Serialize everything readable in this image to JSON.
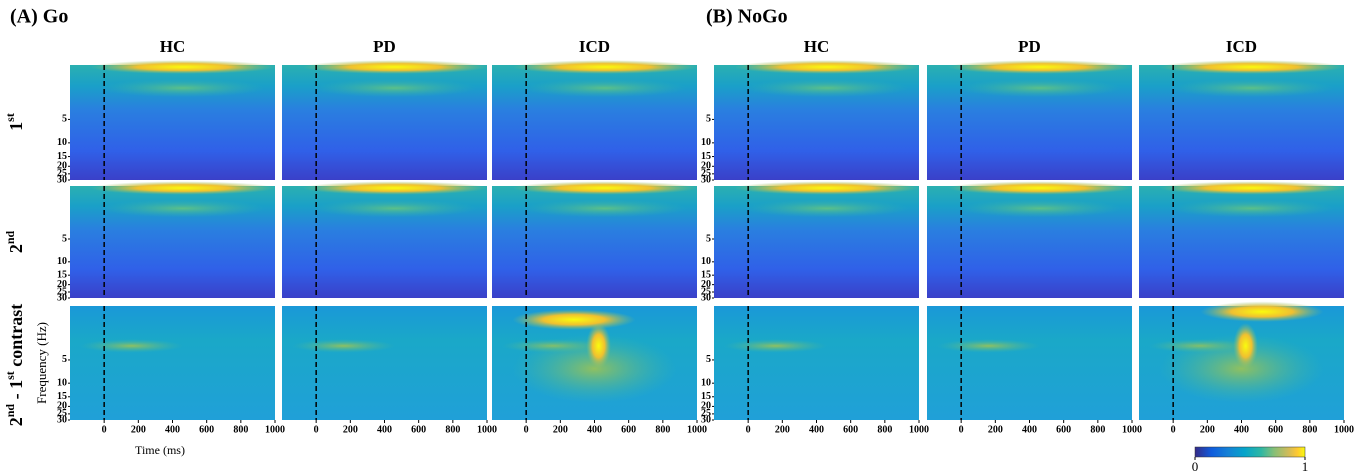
{
  "panels": [
    {
      "label": "(A) Go",
      "groups": [
        "HC",
        "PD",
        "ICD"
      ]
    },
    {
      "label": "(B) NoGo",
      "groups": [
        "HC",
        "PD",
        "ICD"
      ]
    }
  ],
  "rows": [
    [
      {
        "text": "1"
      },
      {
        "text": "st",
        "sup": true
      }
    ],
    [
      {
        "text": "2"
      },
      {
        "text": "nd",
        "sup": true
      }
    ],
    [
      {
        "text": "2"
      },
      {
        "text": "nd",
        "sup": true
      },
      {
        "text": " - 1"
      },
      {
        "text": "st",
        "sup": true
      },
      {
        "text": " contrast"
      }
    ]
  ],
  "x_axis": {
    "label": "Time (ms)",
    "lim": [
      -200,
      1000
    ],
    "ticks": [
      0,
      200,
      400,
      600,
      800,
      1000
    ],
    "onset": 0
  },
  "y_axis": {
    "label": "Frequency (Hz)",
    "lim": [
      1,
      30
    ],
    "log": true,
    "ticks": [
      5,
      10,
      15,
      20,
      25,
      30
    ]
  },
  "colorbar": {
    "lim": [
      0,
      1
    ],
    "ticks": [
      0,
      1
    ]
  }
}
